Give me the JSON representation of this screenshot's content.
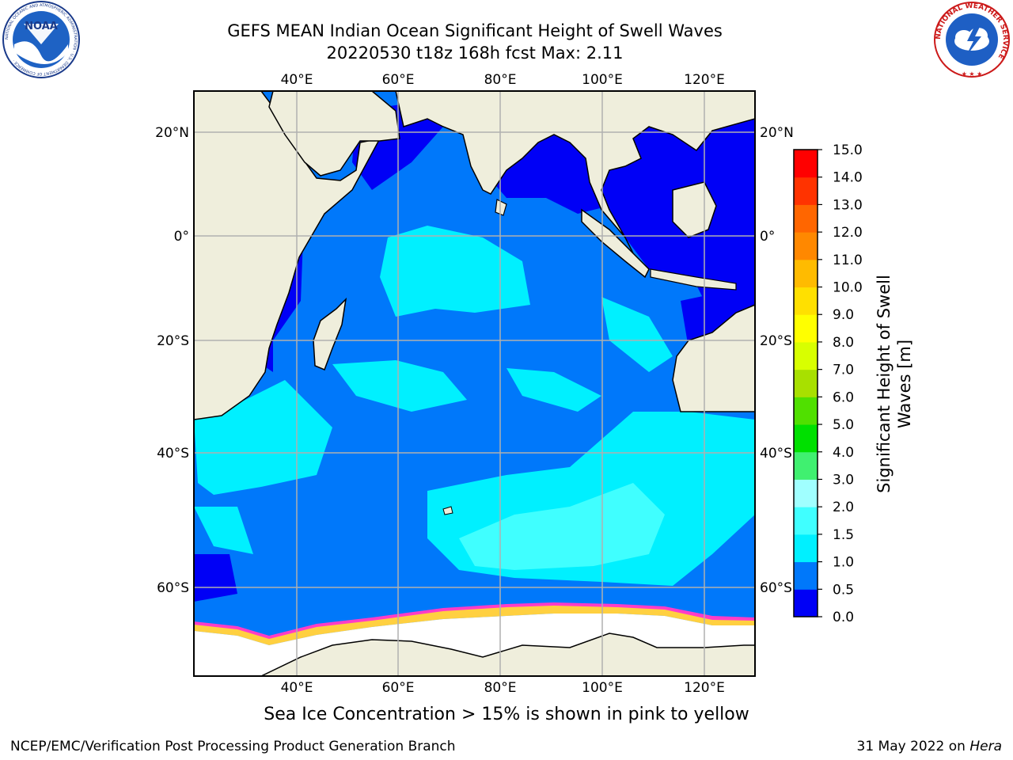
{
  "header": {
    "title_line1": "GEFS MEAN Indian Ocean Significant Height of Swell Waves",
    "title_line2": "20220530 t18z 168h fcst   Max: 2.11"
  },
  "logos": {
    "left": {
      "name": "NOAA",
      "ring_text": "NATIONAL OCEANIC AND ATMOSPHERIC ADMINISTRATION · U.S. DEPARTMENT OF COMMERCE ·"
    },
    "right": {
      "name": "NATIONAL WEATHER SERVICE"
    }
  },
  "map": {
    "lon_labels_top": [
      "40°E",
      "60°E",
      "80°E",
      "100°E",
      "120°E"
    ],
    "lon_labels_bottom": [
      "40°E",
      "60°E",
      "80°E",
      "100°E",
      "120°E"
    ],
    "lat_labels_left": [
      "20°N",
      "0°",
      "20°S",
      "40°S",
      "60°S"
    ],
    "lat_labels_right": [
      "20°N",
      "0°",
      "20°S",
      "40°S",
      "60°S"
    ],
    "colors": {
      "land": "#efeedc",
      "sea_ice": "#ffffff",
      "grid": "#b0b0b0"
    }
  },
  "colorbar": {
    "title": "Significant Height of Swell Waves [m]",
    "ticks": [
      "0.0",
      "0.5",
      "1.0",
      "1.5",
      "2.0",
      "3.0",
      "4.0",
      "5.0",
      "6.0",
      "7.0",
      "8.0",
      "9.0",
      "10.0",
      "11.0",
      "12.0",
      "13.0",
      "14.0",
      "15.0"
    ],
    "colors": [
      "#0000f6",
      "#0078fa",
      "#00f0ff",
      "#40ffff",
      "#a0ffff",
      "#40f070",
      "#00e000",
      "#50e000",
      "#a8e000",
      "#d8ff00",
      "#ffff00",
      "#ffe000",
      "#ffbb00",
      "#ff8800",
      "#ff6600",
      "#ff3300",
      "#ff0000"
    ]
  },
  "note": "Sea Ice Concentration > 15% is shown in pink to yellow",
  "footer": {
    "left": "NCEP/EMC/Verification Post Processing Product Generation Branch",
    "right_prefix": "31 May 2022 on ",
    "right_host": "Hera"
  }
}
